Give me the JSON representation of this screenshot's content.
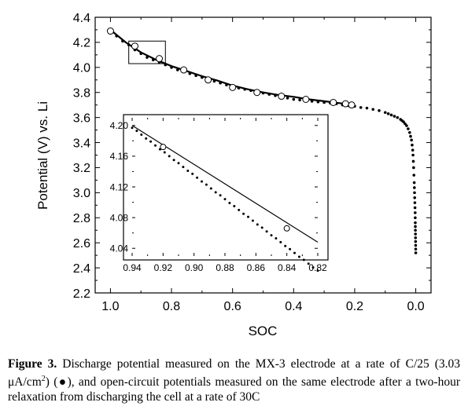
{
  "figure_label": "Figure 3.",
  "caption": {
    "line1_text": "Discharge potential measured on the MX-3 electrode at a rate of",
    "line2_pre": "C/25 (3.03 μA/cm",
    "line2_sup": "2",
    "line2_post": ") (●), and open-circuit potentials measured on the same",
    "line3_text": "electrode after a two-hour relaxation from discharging the cell at a rate of 30C"
  },
  "chart_data": [
    {
      "id": "main",
      "type": "scatter",
      "xlabel": "SOC",
      "ylabel": "Potential (V) vs. Li",
      "xlim": [
        1.05,
        -0.05
      ],
      "ylim": [
        2.2,
        4.4
      ],
      "x_reversed": true,
      "xticks": [
        1.0,
        0.8,
        0.6,
        0.4,
        0.2,
        0.0
      ],
      "xtick_labels": [
        "1.0",
        "0.8",
        "0.6",
        "0.4",
        "0.2",
        "0.0"
      ],
      "yticks": [
        2.2,
        2.4,
        2.6,
        2.8,
        3.0,
        3.2,
        3.4,
        3.6,
        3.8,
        4.0,
        4.2,
        4.4
      ],
      "ytick_labels": [
        "2.2",
        "2.4",
        "2.6",
        "2.8",
        "3.0",
        "3.2",
        "3.4",
        "3.6",
        "3.8",
        "4.0",
        "4.2",
        "4.4"
      ],
      "grid": false,
      "zoom_box": {
        "x": [
          0.94,
          0.82
        ],
        "y": [
          4.03,
          4.21
        ]
      },
      "series": [
        {
          "marker": "filled-circle",
          "x": [
            1.0,
            0.98,
            0.96,
            0.94,
            0.92,
            0.9,
            0.88,
            0.86,
            0.84,
            0.82,
            0.8,
            0.78,
            0.76,
            0.74,
            0.72,
            0.7,
            0.68,
            0.66,
            0.64,
            0.62,
            0.6,
            0.58,
            0.56,
            0.54,
            0.52,
            0.5,
            0.48,
            0.46,
            0.44,
            0.42,
            0.4,
            0.38,
            0.36,
            0.34,
            0.32,
            0.3,
            0.28,
            0.26,
            0.24,
            0.22,
            0.2,
            0.18,
            0.16,
            0.14,
            0.12,
            0.1,
            0.09,
            0.08,
            0.07,
            0.06,
            0.05,
            0.045,
            0.04,
            0.035,
            0.03,
            0.025,
            0.02,
            0.017,
            0.014,
            0.012,
            0.01,
            0.009,
            0.008,
            0.007,
            0.006,
            0.005,
            0.0045,
            0.004,
            0.0035,
            0.003,
            0.0025,
            0.002,
            0.0018,
            0.0016,
            0.0014,
            0.0012,
            0.001,
            0.0008,
            0.0006,
            0.0004,
            0.0002,
            0.0
          ],
          "y": [
            4.29,
            4.25,
            4.21,
            4.18,
            4.14,
            4.11,
            4.08,
            4.06,
            4.04,
            4.02,
            4.0,
            3.98,
            3.965,
            3.95,
            3.935,
            3.92,
            3.905,
            3.89,
            3.875,
            3.86,
            3.845,
            3.835,
            3.825,
            3.815,
            3.805,
            3.795,
            3.785,
            3.775,
            3.765,
            3.755,
            3.745,
            3.74,
            3.735,
            3.73,
            3.725,
            3.72,
            3.715,
            3.71,
            3.7,
            3.695,
            3.69,
            3.68,
            3.675,
            3.665,
            3.655,
            3.64,
            3.63,
            3.62,
            3.61,
            3.6,
            3.585,
            3.575,
            3.565,
            3.55,
            3.535,
            3.51,
            3.48,
            3.45,
            3.42,
            3.38,
            3.34,
            3.3,
            3.25,
            3.2,
            3.14,
            3.08,
            3.04,
            3.0,
            2.96,
            2.92,
            2.88,
            2.84,
            2.8,
            2.76,
            2.73,
            2.7,
            2.67,
            2.64,
            2.61,
            2.58,
            2.55,
            2.52
          ]
        },
        {
          "marker": "open-circle",
          "x": [
            1.0,
            0.92,
            0.84,
            0.76,
            0.68,
            0.6,
            0.52,
            0.44,
            0.36,
            0.27,
            0.23,
            0.21
          ],
          "y": [
            4.29,
            4.17,
            4.07,
            3.98,
            3.9,
            3.84,
            3.8,
            3.77,
            3.745,
            3.72,
            3.71,
            3.7
          ]
        },
        {
          "type": "line",
          "x": [
            1.0,
            0.95,
            0.9,
            0.85,
            0.8,
            0.75,
            0.7,
            0.65,
            0.6,
            0.55,
            0.5,
            0.45,
            0.4,
            0.35,
            0.3,
            0.25,
            0.2
          ],
          "y": [
            4.3,
            4.2,
            4.12,
            4.06,
            4.01,
            3.97,
            3.93,
            3.895,
            3.855,
            3.825,
            3.8,
            3.78,
            3.765,
            3.745,
            3.73,
            3.715,
            3.7
          ]
        }
      ]
    },
    {
      "id": "inset",
      "type": "scatter",
      "xlim": [
        0.94,
        0.82
      ],
      "ylim": [
        4.03,
        4.21
      ],
      "x_reversed": true,
      "xticks": [
        0.94,
        0.92,
        0.9,
        0.88,
        0.86,
        0.84,
        0.82
      ],
      "xtick_labels": [
        "0.94",
        "0.92",
        "0.90",
        "0.88",
        "0.86",
        "0.84",
        "0.82"
      ],
      "yticks": [
        4.04,
        4.08,
        4.12,
        4.16,
        4.2
      ],
      "ytick_labels": [
        "4.04",
        "4.08",
        "4.12",
        "4.16",
        "4.20"
      ],
      "grid": false,
      "series": [
        {
          "marker": "filled-circle",
          "x": [
            0.94,
            0.937,
            0.934,
            0.931,
            0.928,
            0.925,
            0.922,
            0.919,
            0.916,
            0.913,
            0.91,
            0.907,
            0.904,
            0.901,
            0.898,
            0.895,
            0.892,
            0.889,
            0.886,
            0.883,
            0.88,
            0.877,
            0.874,
            0.871,
            0.868,
            0.865,
            0.862,
            0.859,
            0.856,
            0.853,
            0.85,
            0.847,
            0.844,
            0.841,
            0.838,
            0.835,
            0.832,
            0.829,
            0.826,
            0.823,
            0.82
          ],
          "y": [
            4.197,
            4.193,
            4.188,
            4.183,
            4.179,
            4.174,
            4.169,
            4.165,
            4.16,
            4.155,
            4.151,
            4.146,
            4.141,
            4.137,
            4.132,
            4.127,
            4.123,
            4.118,
            4.113,
            4.109,
            4.104,
            4.099,
            4.095,
            4.09,
            4.085,
            4.081,
            4.076,
            4.071,
            4.067,
            4.062,
            4.057,
            4.053,
            4.048,
            4.043,
            4.039,
            4.034,
            4.029,
            4.025,
            4.02,
            4.015,
            4.011
          ]
        },
        {
          "type": "line",
          "x": [
            0.94,
            0.82
          ],
          "y": [
            4.2,
            4.048
          ]
        },
        {
          "marker": "open-circle",
          "x": [
            0.92,
            0.84
          ],
          "y": [
            4.172,
            4.066
          ]
        }
      ]
    }
  ]
}
